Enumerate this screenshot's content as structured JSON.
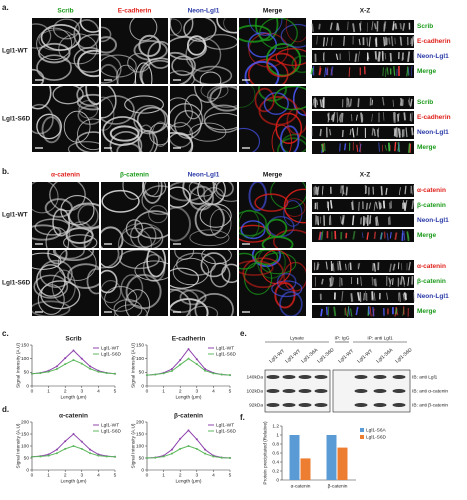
{
  "panel_a": {
    "label": "a.",
    "xz_title": "X-Z",
    "rows": [
      "Lgl1-WT",
      "Lgl1-S6D"
    ],
    "channels": [
      {
        "name": "Scrib",
        "color": "#1a9a1a"
      },
      {
        "name": "E-cadherin",
        "color": "#e0201a"
      },
      {
        "name": "Neon-Lgl1",
        "color": "#2a3aa8"
      },
      {
        "name": "Merge",
        "color": "#111111"
      }
    ],
    "xz_labels": [
      {
        "name": "Scrib",
        "color": "#1a9a1a"
      },
      {
        "name": "E-cadherin",
        "color": "#e0201a"
      },
      {
        "name": "Neon-Lgl1",
        "color": "#2a3aa8"
      },
      {
        "name": "Merge",
        "color": "#1a9a1a"
      }
    ]
  },
  "panel_b": {
    "label": "b.",
    "xz_title": "X-Z",
    "rows": [
      "Lgl1-WT",
      "Lgl1-S6D"
    ],
    "channels": [
      {
        "name": "α-catenin",
        "color": "#e0201a"
      },
      {
        "name": "β-catenin",
        "color": "#1a9a1a"
      },
      {
        "name": "Neon-Lgl1",
        "color": "#2a3aa8"
      },
      {
        "name": "Merge",
        "color": "#111111"
      }
    ],
    "xz_labels": [
      {
        "name": "α-catenin",
        "color": "#e0201a"
      },
      {
        "name": "β-catenin",
        "color": "#1a9a1a"
      },
      {
        "name": "Neon-Lgl1",
        "color": "#2a3aa8"
      },
      {
        "name": "Merge",
        "color": "#1a9a1a"
      }
    ]
  },
  "panel_c": {
    "label": "c."
  },
  "panel_d": {
    "label": "d."
  },
  "panel_e": {
    "label": "e.",
    "groups": [
      "Lysate",
      "IP: IgG",
      "IP: anti Lgl1"
    ],
    "lanes": [
      "Lgl1-WT",
      "Lgl1-WT",
      "Lgl1-S6A",
      "Lgl1-S6D",
      "Lgl1-WT",
      "Lgl1-WT",
      "Lgl1-S6A",
      "Lgl1-S6D"
    ],
    "markers": [
      "140kDa",
      "102kDa",
      "92kDa"
    ],
    "blots": [
      "IB: anti Lgl1",
      "IB: anti α-catenin",
      "IB: anti β-catenin"
    ]
  },
  "panel_f": {
    "label": "f."
  },
  "chart_data": [
    {
      "type": "line",
      "title": "Scrib",
      "xlabel": "Length (μm)",
      "ylabel": "Signal Intensity (A.U)",
      "x": [
        0,
        0.5,
        1,
        1.5,
        2,
        2.5,
        3,
        3.5,
        4,
        4.5,
        5
      ],
      "xlim": [
        0,
        5
      ],
      "xticks": [
        0,
        1,
        2,
        3,
        4,
        5
      ],
      "ylim": [
        0,
        150
      ],
      "yticks": [
        0,
        50,
        100,
        150
      ],
      "series": [
        {
          "name": "Lgl1-WT",
          "color": "#8e44ad",
          "values": [
            45,
            48,
            56,
            72,
            102,
            130,
            100,
            72,
            56,
            48,
            45
          ]
        },
        {
          "name": "Lgl1-S6D",
          "color": "#5cb85c",
          "values": [
            45,
            47,
            52,
            62,
            80,
            95,
            82,
            63,
            52,
            47,
            45
          ]
        }
      ]
    },
    {
      "type": "line",
      "title": "E-cadherin",
      "xlabel": "Length (μm)",
      "ylabel": "Signal Intensity (A.U)",
      "x": [
        0,
        0.5,
        1,
        1.5,
        2,
        2.5,
        3,
        3.5,
        4,
        4.5,
        5
      ],
      "xlim": [
        0,
        5
      ],
      "xticks": [
        0,
        1,
        2,
        3,
        4,
        5
      ],
      "ylim": [
        0,
        150
      ],
      "yticks": [
        0,
        50,
        100,
        150
      ],
      "series": [
        {
          "name": "Lgl1-WT",
          "color": "#8e44ad",
          "values": [
            40,
            42,
            48,
            62,
            95,
            135,
            98,
            62,
            48,
            42,
            40
          ]
        },
        {
          "name": "Lgl1-S6D",
          "color": "#5cb85c",
          "values": [
            40,
            42,
            46,
            55,
            78,
            100,
            80,
            56,
            46,
            42,
            40
          ]
        }
      ]
    },
    {
      "type": "line",
      "title": "α-catenin",
      "xlabel": "Length (μm)",
      "ylabel": "Signal Intensity (A.U)",
      "x": [
        0,
        0.5,
        1,
        1.5,
        2,
        2.5,
        3,
        3.5,
        4,
        4.5,
        5
      ],
      "xlim": [
        0,
        5
      ],
      "xticks": [
        0,
        1,
        2,
        3,
        4,
        5
      ],
      "ylim": [
        0,
        200
      ],
      "yticks": [
        0,
        50,
        100,
        150,
        200
      ],
      "series": [
        {
          "name": "Lgl1-WT",
          "color": "#8e44ad",
          "values": [
            55,
            58,
            65,
            85,
            120,
            150,
            118,
            85,
            65,
            58,
            55
          ]
        },
        {
          "name": "Lgl1-S6D",
          "color": "#5cb85c",
          "values": [
            55,
            56,
            60,
            70,
            88,
            100,
            88,
            70,
            60,
            56,
            55
          ]
        }
      ]
    },
    {
      "type": "line",
      "title": "β-catenin",
      "xlabel": "Length (μm)",
      "ylabel": "Signal Intensity (A.U)",
      "x": [
        0,
        0.5,
        1,
        1.5,
        2,
        2.5,
        3,
        3.5,
        4,
        4.5,
        5
      ],
      "xlim": [
        0,
        5
      ],
      "xticks": [
        0,
        1,
        2,
        3,
        4,
        5
      ],
      "ylim": [
        0,
        200
      ],
      "yticks": [
        0,
        50,
        100,
        150,
        200
      ],
      "series": [
        {
          "name": "Lgl1-WT",
          "color": "#8e44ad",
          "values": [
            50,
            52,
            60,
            85,
            130,
            165,
            128,
            85,
            60,
            52,
            50
          ]
        },
        {
          "name": "Lgl1-S6D",
          "color": "#5cb85c",
          "values": [
            50,
            51,
            56,
            68,
            88,
            100,
            88,
            68,
            56,
            51,
            50
          ]
        }
      ]
    },
    {
      "type": "bar",
      "ylabel": "Protein precipitated (Relative)",
      "categories": [
        "α-catenin",
        "β-catenin"
      ],
      "ylim": [
        0,
        1.2
      ],
      "yticks": [
        0,
        0.2,
        0.4,
        0.6,
        0.8,
        1,
        1.2
      ],
      "series": [
        {
          "name": "Lgl1-S6A",
          "color": "#5b9bd5",
          "values": [
            1,
            1
          ]
        },
        {
          "name": "Lgl1-S6D",
          "color": "#ed7d31",
          "values": [
            0.48,
            0.72
          ]
        }
      ]
    }
  ]
}
